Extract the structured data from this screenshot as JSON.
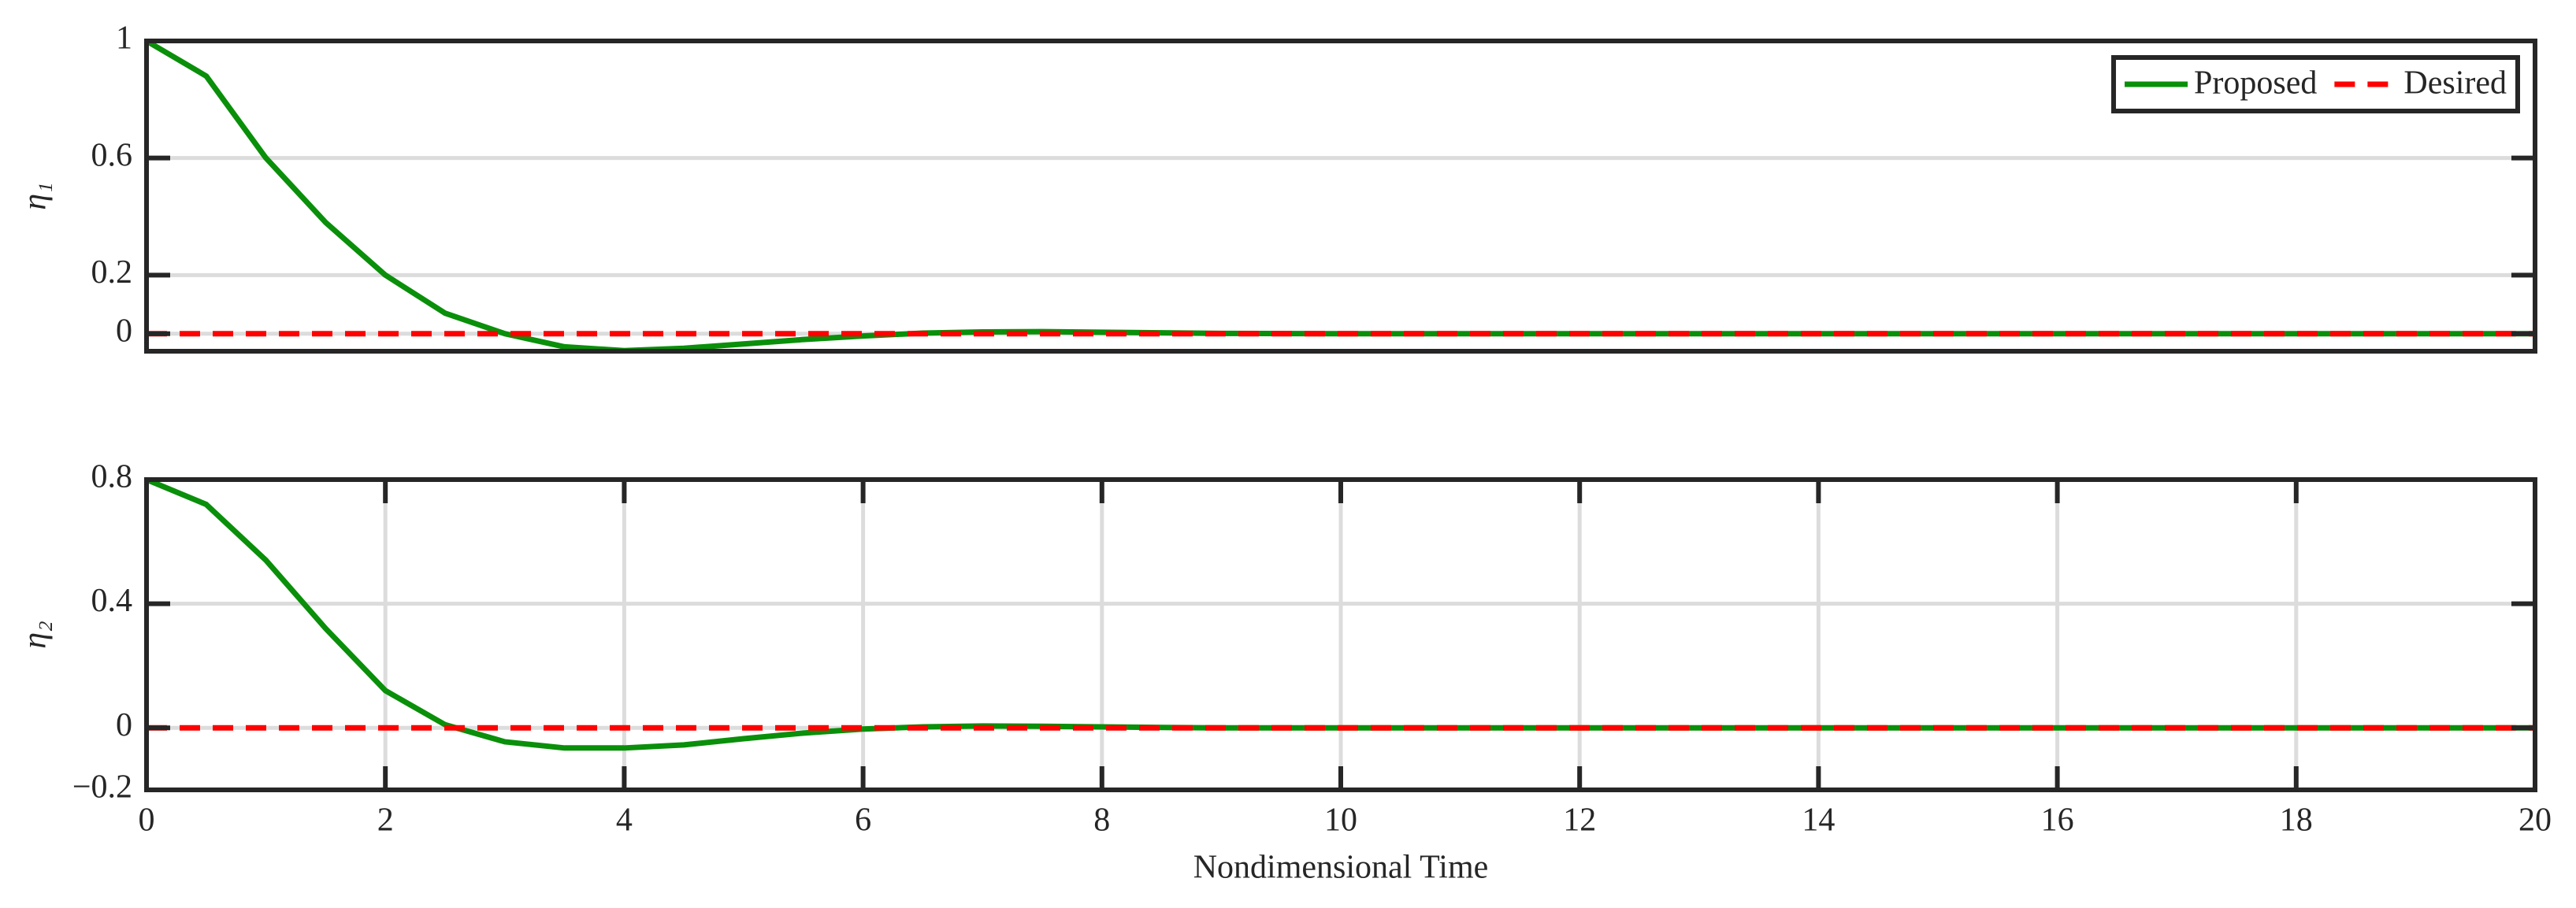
{
  "chart_data": [
    {
      "type": "line",
      "ylabel": "η₁",
      "x": [
        0,
        0.5,
        1,
        1.5,
        2,
        2.5,
        3,
        3.5,
        4,
        4.5,
        5,
        5.5,
        6,
        6.5,
        7,
        7.5,
        8,
        8.5,
        9,
        10,
        12,
        14,
        16,
        18,
        20
      ],
      "series": [
        {
          "name": "Proposed",
          "color": "#0a8f0a",
          "linestyle": "solid",
          "values": [
            1,
            0.88,
            0.6,
            0.38,
            0.2,
            0.07,
            0,
            -0.045,
            -0.058,
            -0.05,
            -0.035,
            -0.02,
            -0.008,
            0.002,
            0.006,
            0.007,
            0.005,
            0.003,
            0.001,
            0,
            0,
            0,
            0,
            0,
            0
          ]
        },
        {
          "name": "Desired",
          "color": "#ff0000",
          "linestyle": "dashed",
          "values": [
            0,
            0,
            0,
            0,
            0,
            0,
            0,
            0,
            0,
            0,
            0,
            0,
            0,
            0,
            0,
            0,
            0,
            0,
            0,
            0,
            0,
            0,
            0,
            0,
            0
          ]
        }
      ],
      "xlim": [
        0,
        20
      ],
      "ylim": [
        -0.06,
        1
      ],
      "yticks": [
        0,
        0.2,
        0.6,
        1
      ],
      "grid": "y",
      "legend": "upper right"
    },
    {
      "type": "line",
      "ylabel": "η₂",
      "xlabel": "Nondimensional Time",
      "x": [
        0,
        0.5,
        1,
        1.5,
        2,
        2.5,
        3,
        3.5,
        4,
        4.5,
        5,
        5.5,
        6,
        6.5,
        7,
        7.5,
        8,
        8.5,
        9,
        10,
        12,
        14,
        16,
        18,
        20
      ],
      "series": [
        {
          "color": "#0a8f0a",
          "linestyle": "solid",
          "values": [
            0.8,
            0.72,
            0.54,
            0.32,
            0.12,
            0.01,
            -0.045,
            -0.065,
            -0.065,
            -0.055,
            -0.035,
            -0.017,
            -0.004,
            0.003,
            0.006,
            0.005,
            0.003,
            0.001,
            0,
            0,
            0,
            0,
            0,
            0,
            0
          ]
        },
        {
          "color": "#ff0000",
          "linestyle": "dashed",
          "values": [
            0,
            0,
            0,
            0,
            0,
            0,
            0,
            0,
            0,
            0,
            0,
            0,
            0,
            0,
            0,
            0,
            0,
            0,
            0,
            0,
            0,
            0,
            0,
            0,
            0
          ]
        }
      ],
      "xlim": [
        0,
        20
      ],
      "ylim": [
        -0.2,
        0.8
      ],
      "xticks": [
        0,
        2,
        4,
        6,
        8,
        10,
        12,
        14,
        16,
        18,
        20
      ],
      "yticks": [
        {
          "value": -0.2,
          "label": "−0.2"
        },
        0,
        0.4,
        0.8
      ],
      "grid": "both"
    }
  ]
}
